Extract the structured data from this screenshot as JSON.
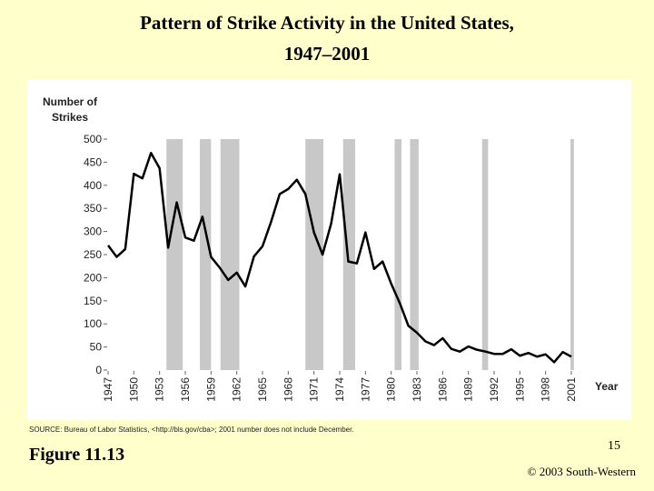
{
  "chart_data": {
    "type": "line",
    "title": [
      "Pattern of Strike Activity in the United States,",
      "1947–2001"
    ],
    "ylabel": [
      "Number of",
      "Strikes"
    ],
    "xlabel": "Year",
    "source": "SOURCE: Bureau of Labor Statistics, <http://bls.gov/cba>; 2001 number does not include December.",
    "x": [
      1947,
      1948,
      1949,
      1950,
      1951,
      1952,
      1953,
      1954,
      1955,
      1956,
      1957,
      1958,
      1959,
      1960,
      1961,
      1962,
      1963,
      1964,
      1965,
      1966,
      1967,
      1968,
      1969,
      1970,
      1971,
      1972,
      1973,
      1974,
      1975,
      1976,
      1977,
      1978,
      1979,
      1980,
      1981,
      1982,
      1983,
      1984,
      1985,
      1986,
      1987,
      1988,
      1989,
      1990,
      1991,
      1992,
      1993,
      1994,
      1995,
      1996,
      1997,
      1998,
      1999,
      2000,
      2001
    ],
    "series": [
      {
        "name": "Number of Strikes",
        "color": "#000000",
        "values": [
          270,
          245,
          262,
          425,
          415,
          470,
          437,
          265,
          363,
          287,
          280,
          332,
          245,
          222,
          195,
          211,
          181,
          246,
          268,
          321,
          381,
          392,
          412,
          381,
          298,
          250,
          317,
          424,
          235,
          231,
          298,
          219,
          235,
          187,
          145,
          96,
          81,
          62,
          54,
          69,
          46,
          40,
          51,
          44,
          40,
          35,
          35,
          45,
          31,
          37,
          29,
          34,
          17,
          39,
          29
        ]
      }
    ],
    "shaded_periods": [
      [
        1953.8,
        1955.7
      ],
      [
        1957.7,
        1959.0
      ],
      [
        1960.1,
        1962.3
      ],
      [
        1970.0,
        1972.1
      ],
      [
        1974.4,
        1975.8
      ],
      [
        1980.4,
        1981.2
      ],
      [
        1982.2,
        1983.2
      ],
      [
        1990.6,
        1991.3
      ],
      [
        2000.9,
        2001.3
      ]
    ],
    "shade_color": "#c8c8c8",
    "xlim": [
      1947,
      2001
    ],
    "xticks": [
      1947,
      1950,
      1953,
      1956,
      1959,
      1962,
      1965,
      1968,
      1971,
      1974,
      1977,
      1980,
      1983,
      1986,
      1989,
      1992,
      1995,
      1998,
      2001
    ],
    "ylim": [
      0,
      500
    ],
    "yticks": [
      0,
      50,
      100,
      150,
      200,
      250,
      300,
      350,
      400,
      450,
      500
    ]
  },
  "slide": {
    "figure": "Figure 11.13",
    "page_number": "15",
    "copyright": "© 2003 South-Western"
  }
}
